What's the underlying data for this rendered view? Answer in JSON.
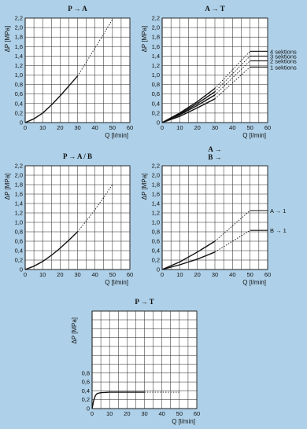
{
  "chart_data": [
    {
      "type": "line",
      "title": "P → A",
      "xlabel": "Q [l/min]",
      "ylabel": "ΔP [MPa]",
      "xlim": [
        0,
        60
      ],
      "ylim": [
        0,
        2.2
      ],
      "x_ticks": [
        "0",
        "10",
        "20",
        "30",
        "40",
        "50",
        "60"
      ],
      "y_ticks": [
        "0",
        "0,2",
        "0,4",
        "0,6",
        "0,8",
        "1,0",
        "1,2",
        "1,4",
        "1,6",
        "1,8",
        "2,0",
        "2,2"
      ],
      "series": [
        {
          "style": "solid",
          "x": [
            0,
            5,
            10,
            15,
            20,
            25,
            30
          ],
          "y": [
            0,
            0.08,
            0.2,
            0.37,
            0.56,
            0.77,
            0.98
          ]
        },
        {
          "style": "dotted",
          "x": [
            30,
            35,
            40,
            45,
            50
          ],
          "y": [
            0.98,
            1.27,
            1.57,
            1.87,
            2.17
          ]
        }
      ]
    },
    {
      "type": "line",
      "title": "A → T",
      "xlabel": "Q [l/min]",
      "ylabel": "ΔP [MPa]",
      "xlim": [
        0,
        60
      ],
      "ylim": [
        0,
        2.2
      ],
      "x_ticks": [
        "0",
        "10",
        "20",
        "30",
        "40",
        "50",
        "60"
      ],
      "y_ticks": [
        "0",
        "0,2",
        "0,4",
        "0,6",
        "0,8",
        "1,0",
        "1,2",
        "1,4",
        "1,6",
        "1,8",
        "2,0",
        "2,2"
      ],
      "series": [
        {
          "name": "4 sektions",
          "x": [
            0,
            10,
            20,
            30
          ],
          "y": [
            0,
            0.2,
            0.44,
            0.72
          ],
          "x_ext": [
            30,
            50,
            60
          ],
          "y_ext": [
            0.72,
            1.5,
            1.5
          ]
        },
        {
          "name": "3 sektions",
          "x": [
            0,
            10,
            20,
            30
          ],
          "y": [
            0,
            0.18,
            0.4,
            0.65
          ],
          "x_ext": [
            30,
            50,
            60
          ],
          "y_ext": [
            0.65,
            1.4,
            1.4
          ]
        },
        {
          "name": "2 sektions",
          "x": [
            0,
            10,
            20,
            30
          ],
          "y": [
            0,
            0.16,
            0.36,
            0.58
          ],
          "x_ext": [
            30,
            50,
            60
          ],
          "y_ext": [
            0.58,
            1.3,
            1.3
          ]
        },
        {
          "name": "1 sektions",
          "x": [
            0,
            10,
            20,
            30
          ],
          "y": [
            0,
            0.13,
            0.31,
            0.5
          ],
          "x_ext": [
            30,
            50,
            60
          ],
          "y_ext": [
            0.5,
            1.17,
            1.17
          ]
        }
      ]
    },
    {
      "type": "line",
      "title": "P → A / B",
      "xlabel": "Q [l/min]",
      "ylabel": "ΔP [MPa]",
      "xlim": [
        0,
        60
      ],
      "ylim": [
        0,
        2.2
      ],
      "x_ticks": [
        "0",
        "10",
        "20",
        "30",
        "40",
        "50",
        "60"
      ],
      "y_ticks": [
        "0",
        "0,2",
        "0,4",
        "0,6",
        "0,8",
        "1,0",
        "1,2",
        "1,4",
        "1,6",
        "1,8",
        "2,0",
        "2,2"
      ],
      "series": [
        {
          "style": "solid",
          "x": [
            0,
            5,
            10,
            15,
            20,
            25,
            30
          ],
          "y": [
            0,
            0.07,
            0.17,
            0.3,
            0.45,
            0.62,
            0.8
          ]
        },
        {
          "style": "dotted",
          "x": [
            30,
            35,
            40,
            45,
            50
          ],
          "y": [
            0.8,
            1.03,
            1.27,
            1.53,
            1.8
          ]
        }
      ]
    },
    {
      "type": "line",
      "title": "A →",
      "subtitle": "B →",
      "xlabel": "Q [l/min]",
      "ylabel": "ΔP [MPa]",
      "xlim": [
        0,
        60
      ],
      "ylim": [
        0,
        2.2
      ],
      "x_ticks": [
        "0",
        "10",
        "20",
        "30",
        "40",
        "50",
        "60"
      ],
      "y_ticks": [
        "0",
        "0,2",
        "0,4",
        "0,6",
        "0,8",
        "1,0",
        "1,2",
        "1,4",
        "1,6",
        "1,8",
        "2,0",
        "2,2"
      ],
      "series": [
        {
          "name": "A → 1",
          "x": [
            0,
            10,
            20,
            30
          ],
          "y": [
            0,
            0.16,
            0.37,
            0.6
          ],
          "x_ext": [
            30,
            50,
            60
          ],
          "y_ext": [
            0.6,
            1.25,
            1.25
          ]
        },
        {
          "name": "B → 1",
          "x": [
            0,
            10,
            20,
            30
          ],
          "y": [
            0,
            0.1,
            0.22,
            0.37
          ],
          "x_ext": [
            30,
            50,
            60
          ],
          "y_ext": [
            0.37,
            0.83,
            0.83
          ]
        }
      ]
    },
    {
      "type": "line",
      "title": "P → T",
      "xlabel": "Q [l/min]",
      "ylabel": "ΔP [MPa]",
      "xlim": [
        0,
        60
      ],
      "ylim": [
        0,
        2.2
      ],
      "x_ticks": [
        "0",
        "10",
        "20",
        "30",
        "40",
        "50",
        "60"
      ],
      "y_ticks": [
        "0",
        "0,2",
        "0,4",
        "0,6",
        "0,8"
      ],
      "series": [
        {
          "style": "solid",
          "x": [
            0,
            1,
            2,
            3,
            5,
            10,
            30
          ],
          "y": [
            0,
            0.2,
            0.3,
            0.34,
            0.36,
            0.37,
            0.37
          ]
        },
        {
          "style": "dotted",
          "x": [
            30,
            50
          ],
          "y": [
            0.37,
            0.37
          ]
        }
      ]
    }
  ]
}
